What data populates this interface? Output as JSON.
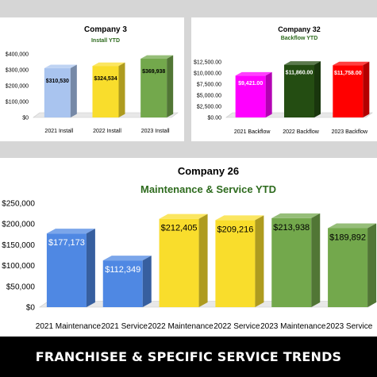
{
  "footer": {
    "banner": "FRANCHISEE & SPECIFIC SERVICE TRENDS"
  },
  "chart_data": [
    {
      "type": "bar",
      "title": "Company 3",
      "subtitle": "Install YTD",
      "categories": [
        "2021 Install",
        "2022 Install",
        "2023 Install"
      ],
      "values": [
        310530,
        324534,
        369938
      ],
      "labels": [
        "$310,530",
        "$324,534",
        "$369,938"
      ],
      "bar_colors": [
        "#a9c4ef",
        "#f9dd2c",
        "#73a84c"
      ],
      "label_colors": [
        "#000000",
        "#000000",
        "#000000"
      ],
      "yticks": [
        "$400,000",
        "$300,000",
        "$200,000",
        "$100,000",
        "$0"
      ],
      "ylim": [
        0,
        400000
      ],
      "title_color": "#000000",
      "subtitle_color": "#2e6b1e",
      "grid": false
    },
    {
      "type": "bar",
      "title": "Company 32",
      "subtitle": "Backflow YTD",
      "categories": [
        "2021 Backflow",
        "2022 Backflow",
        "2023 Backflow"
      ],
      "values": [
        9421,
        11860,
        11758
      ],
      "labels": [
        "$9,421.00",
        "$11,860.00",
        "$11,758.00"
      ],
      "bar_colors": [
        "#ff00ff",
        "#244d12",
        "#ff0000"
      ],
      "label_colors": [
        "#ffffff",
        "#ffffff",
        "#ffffff"
      ],
      "yticks": [
        "$12,500.00",
        "$10,000.00",
        "$7,500.00",
        "$5,000.00",
        "$2,500.00",
        "$0.00"
      ],
      "ylim": [
        0,
        12500
      ],
      "title_color": "#000000",
      "subtitle_color": "#2e6b1e",
      "grid": false
    },
    {
      "type": "bar",
      "title": "Company 26",
      "subtitle": "Maintenance & Service YTD",
      "categories": [
        "2021 Maintenance",
        "2021 Service",
        "2022 Maintenance",
        "2022 Service",
        "2023 Maintenance",
        "2023 Service"
      ],
      "values": [
        177173,
        112349,
        212405,
        209216,
        213938,
        189892
      ],
      "labels": [
        "$177,173",
        "$112,349",
        "$212,405",
        "$209,216",
        "$213,938",
        "$189,892"
      ],
      "bar_colors": [
        "#4f88e3",
        "#4f88e3",
        "#f9dd2c",
        "#f9dd2c",
        "#73a84c",
        "#73a84c"
      ],
      "label_colors": [
        "#ffffff",
        "#ffffff",
        "#000000",
        "#000000",
        "#000000",
        "#000000"
      ],
      "yticks": [
        "$250,000",
        "$200,000",
        "$150,000",
        "$100,000",
        "$50,000",
        "$0"
      ],
      "ylim": [
        0,
        250000
      ],
      "title_color": "#000000",
      "subtitle_color": "#2e6b1e",
      "grid": false
    }
  ]
}
